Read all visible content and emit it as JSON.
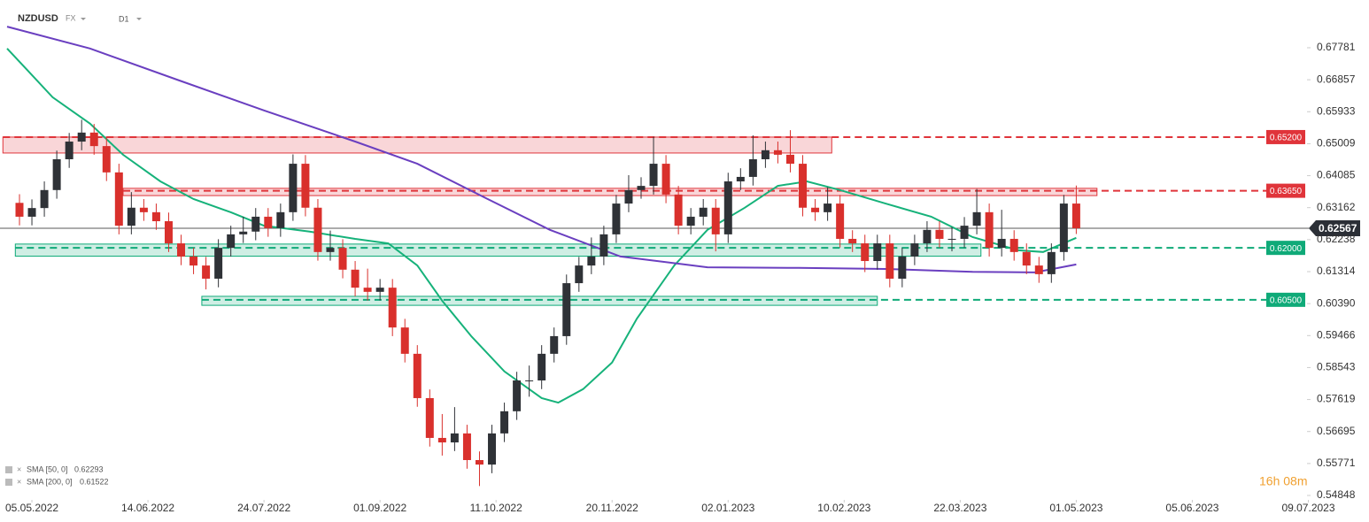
{
  "chart_data": {
    "type": "candlestick",
    "symbol": "NZDUSD",
    "market": "FX",
    "interval": "D1",
    "timer": "16h 08m",
    "xlim": [
      -4.7,
      309.4
    ],
    "ylim": [
      0.5472,
      0.6916
    ],
    "yticks": [
      0.67781,
      0.66857,
      0.65933,
      0.65009,
      0.64085,
      0.63162,
      0.62238,
      0.61314,
      {
        "value": 0.6039,
        "label": "0.60390"
      },
      0.59466,
      0.58543,
      0.57619,
      0.56695,
      0.55771,
      0.54848
    ],
    "xticks": [
      {
        "value": 3,
        "label": "05.05.2022"
      },
      {
        "value": 31,
        "label": "14.06.2022"
      },
      {
        "value": 59,
        "label": "24.07.2022"
      },
      {
        "value": 87,
        "label": "01.09.2022"
      },
      {
        "value": 115,
        "label": "11.10.2022"
      },
      {
        "value": 143,
        "label": "20.11.2022"
      },
      {
        "value": 171,
        "label": "02.01.2023"
      },
      {
        "value": 199,
        "label": "10.02.2023"
      },
      {
        "value": 227,
        "label": "22.03.2023"
      },
      {
        "value": 255,
        "label": "01.05.2023"
      },
      {
        "value": 283,
        "label": "05.06.2023"
      },
      {
        "value": 311,
        "label": "09.07.2023"
      }
    ],
    "up_color": "#2f3237",
    "down_color": "#d9302c",
    "x": [
      0,
      3,
      6,
      9,
      12,
      15,
      18,
      21,
      24,
      27,
      30,
      33,
      36,
      39,
      42,
      45,
      48,
      51,
      54,
      57,
      60,
      63,
      66,
      69,
      72,
      75,
      78,
      81,
      84,
      87,
      90,
      93,
      96,
      99,
      102,
      105,
      108,
      111,
      114,
      117,
      120,
      123,
      126,
      129,
      132,
      135,
      138,
      141,
      144,
      147,
      150,
      153,
      156,
      159,
      162,
      165,
      168,
      171,
      174,
      177,
      180,
      183,
      186,
      189,
      192,
      195,
      198,
      201,
      204,
      207,
      210,
      213,
      216,
      219,
      222,
      225,
      228,
      231,
      234,
      237,
      240,
      243,
      246,
      249,
      252,
      255
    ],
    "open": [
      0.633,
      0.629,
      0.6315,
      0.6367,
      0.6456,
      0.6507,
      0.6533,
      0.6494,
      0.6418,
      0.6264,
      0.6316,
      0.6303,
      0.6277,
      0.6213,
      0.6175,
      0.6149,
      0.6111,
      0.62,
      0.6239,
      0.6247,
      0.629,
      0.6257,
      0.6303,
      0.6443,
      0.6316,
      0.6188,
      0.62,
      0.6137,
      0.6085,
      0.6073,
      0.6085,
      0.597,
      0.5894,
      0.5766,
      0.5651,
      0.5638,
      0.5664,
      0.5587,
      0.5574,
      0.5664,
      0.5728,
      0.5817,
      0.5817,
      0.5894,
      0.5945,
      0.6098,
      0.6149,
      0.6175,
      0.6239,
      0.6328,
      0.6367,
      0.6379,
      0.6443,
      0.6354,
      0.6264,
      0.629,
      0.6316,
      0.6239,
      0.6392,
      0.6405,
      0.6456,
      0.6482,
      0.6469,
      0.6443,
      0.6316,
      0.6303,
      0.6328,
      0.6226,
      0.6213,
      0.6162,
      0.6213,
      0.6111,
      0.6175,
      0.6213,
      0.6252,
      0.6226,
      0.6226,
      0.6264,
      0.6303,
      0.62,
      0.6226,
      0.6188,
      0.6149,
      0.6124,
      0.6188,
      0.6328
    ],
    "high": [
      0.6355,
      0.634,
      0.6392,
      0.6481,
      0.6532,
      0.657,
      0.6558,
      0.6519,
      0.6443,
      0.6361,
      0.6341,
      0.6328,
      0.6302,
      0.6238,
      0.62,
      0.6174,
      0.6225,
      0.6264,
      0.629,
      0.6315,
      0.6315,
      0.6328,
      0.647,
      0.6468,
      0.6341,
      0.625,
      0.6225,
      0.6162,
      0.614,
      0.611,
      0.611,
      0.5995,
      0.5919,
      0.5791,
      0.572,
      0.574,
      0.5689,
      0.5612,
      0.5689,
      0.5753,
      0.5842,
      0.586,
      0.5919,
      0.597,
      0.6123,
      0.6174,
      0.623,
      0.6264,
      0.6353,
      0.641,
      0.6404,
      0.6521,
      0.6468,
      0.6379,
      0.6315,
      0.6341,
      0.6341,
      0.6417,
      0.643,
      0.6525,
      0.6507,
      0.6507,
      0.654,
      0.6468,
      0.6341,
      0.6375,
      0.6353,
      0.6251,
      0.6238,
      0.6238,
      0.6238,
      0.62,
      0.6238,
      0.6277,
      0.6277,
      0.626,
      0.6289,
      0.637,
      0.6328,
      0.631,
      0.6251,
      0.6213,
      0.6174,
      0.6213,
      0.6353,
      0.638
    ],
    "low": [
      0.6265,
      0.6265,
      0.629,
      0.6342,
      0.6431,
      0.6482,
      0.6469,
      0.6393,
      0.6239,
      0.6239,
      0.6278,
      0.6252,
      0.6188,
      0.615,
      0.6124,
      0.608,
      0.6086,
      0.6175,
      0.6214,
      0.6222,
      0.6232,
      0.6232,
      0.6278,
      0.6291,
      0.6163,
      0.6163,
      0.6112,
      0.606,
      0.6048,
      0.6048,
      0.5945,
      0.5869,
      0.5741,
      0.5626,
      0.56,
      0.5613,
      0.5562,
      0.5512,
      0.5549,
      0.5639,
      0.5703,
      0.577,
      0.5792,
      0.5869,
      0.592,
      0.6073,
      0.6124,
      0.615,
      0.6214,
      0.6303,
      0.6342,
      0.6354,
      0.6329,
      0.6239,
      0.6239,
      0.6265,
      0.619,
      0.6214,
      0.6367,
      0.638,
      0.6431,
      0.6444,
      0.6418,
      0.6291,
      0.6278,
      0.6278,
      0.6201,
      0.6188,
      0.613,
      0.6137,
      0.6086,
      0.6086,
      0.615,
      0.6188,
      0.6201,
      0.619,
      0.6201,
      0.6239,
      0.6175,
      0.6175,
      0.6163,
      0.6124,
      0.6099,
      0.6099,
      0.6163,
      0.624
    ],
    "close": [
      0.629,
      0.6315,
      0.6367,
      0.6456,
      0.6507,
      0.6533,
      0.6494,
      0.6418,
      0.6264,
      0.6316,
      0.6303,
      0.6277,
      0.6213,
      0.6175,
      0.6149,
      0.6111,
      0.62,
      0.6239,
      0.6247,
      0.629,
      0.6257,
      0.6303,
      0.6443,
      0.6316,
      0.6188,
      0.62,
      0.6137,
      0.6085,
      0.6073,
      0.6085,
      0.597,
      0.5894,
      0.5766,
      0.5651,
      0.5638,
      0.5664,
      0.5587,
      0.5574,
      0.5664,
      0.5728,
      0.5817,
      0.5817,
      0.5894,
      0.5945,
      0.6098,
      0.6149,
      0.6175,
      0.6239,
      0.6328,
      0.6367,
      0.6379,
      0.6443,
      0.6354,
      0.6264,
      0.629,
      0.6316,
      0.6239,
      0.6392,
      0.6405,
      0.6456,
      0.6482,
      0.6469,
      0.6443,
      0.6316,
      0.6303,
      0.6328,
      0.6226,
      0.6213,
      0.6162,
      0.6213,
      0.6111,
      0.6175,
      0.6213,
      0.6252,
      0.6226,
      0.6226,
      0.6264,
      0.6303,
      0.62,
      0.6226,
      0.6188,
      0.6149,
      0.6124,
      0.6188,
      0.6328,
      0.62567
    ],
    "last_price": 0.62567,
    "sma": [
      {
        "name": "SMA [50, 0]",
        "value": 0.62293,
        "color": "#16b27a",
        "x": [
          -3,
          2,
          8,
          17,
          25,
          34,
          42,
          51,
          59,
          70,
          81,
          89,
          96,
          102,
          109,
          117,
          126,
          130,
          136,
          143,
          149,
          158,
          166,
          175,
          183,
          190,
          198,
          209,
          220,
          230,
          241,
          247,
          255
        ],
        "values": [
          0.6776,
          0.6712,
          0.6635,
          0.6559,
          0.6469,
          0.6392,
          0.6341,
          0.6303,
          0.6264,
          0.6247,
          0.6226,
          0.6213,
          0.6149,
          0.6047,
          0.5945,
          0.5843,
          0.5766,
          0.5753,
          0.5792,
          0.5869,
          0.5996,
          0.6149,
          0.6252,
          0.6316,
          0.6379,
          0.6392,
          0.6367,
          0.6328,
          0.629,
          0.6231,
          0.6193,
          0.6188,
          0.6229
        ]
      },
      {
        "name": "SMA [200, 0]",
        "value": 0.61522,
        "color": "#6a3fc0",
        "x": [
          -3,
          17,
          38,
          59,
          81,
          96,
          113,
          128,
          145,
          166,
          188,
          209,
          230,
          245,
          255
        ],
        "values": [
          0.6839,
          0.6776,
          0.6686,
          0.6597,
          0.6507,
          0.6443,
          0.6341,
          0.6252,
          0.6175,
          0.6144,
          0.6142,
          0.6139,
          0.6131,
          0.6129,
          0.6152
        ]
      }
    ],
    "zones": [
      {
        "level": {
          "value": 0.652,
          "label": "0.65200"
        },
        "range": [
          0.6474,
          0.652
        ],
        "x": [
          -4,
          196
        ],
        "color": "#e0343a"
      },
      {
        "level": {
          "value": 0.6365,
          "label": "0.63650"
        },
        "range": [
          0.6351,
          0.6372
        ],
        "x": [
          25,
          260
        ],
        "color": "#e0343a"
      },
      {
        "level": {
          "value": 0.62,
          "label": "0.62000"
        },
        "range": [
          0.6176,
          0.6211
        ],
        "x": [
          -1,
          232
        ],
        "color": "#0faa78"
      },
      {
        "level": {
          "value": 0.605,
          "label": "0.60500"
        },
        "range": [
          0.6034,
          0.606
        ],
        "x": [
          44,
          207
        ],
        "color": "#0faa78"
      }
    ]
  }
}
